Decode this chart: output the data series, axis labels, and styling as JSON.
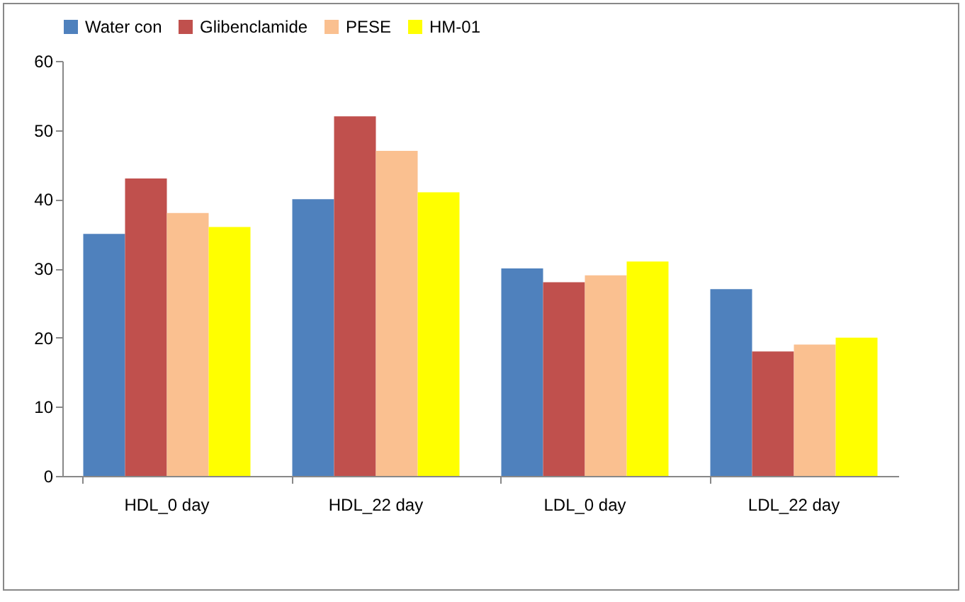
{
  "chart_data": {
    "type": "bar",
    "categories": [
      "HDL_0 day",
      "HDL_22 day",
      "LDL_0 day",
      "LDL_22 day"
    ],
    "series": [
      {
        "name": "Water con",
        "color": "#4f81bd",
        "values": [
          35,
          40,
          30,
          27
        ]
      },
      {
        "name": "Glibenclamide",
        "color": "#c0504d",
        "values": [
          43,
          52,
          28,
          18
        ]
      },
      {
        "name": "PESE",
        "color": "#fac090",
        "values": [
          38,
          47,
          29,
          19
        ]
      },
      {
        "name": "HM-01",
        "color": "#ffff00",
        "values": [
          36,
          41,
          31,
          20
        ]
      }
    ],
    "ylim": [
      0,
      60
    ],
    "yticks": [
      0,
      10,
      20,
      30,
      40,
      50,
      60
    ],
    "grid": false,
    "legend": "top"
  }
}
